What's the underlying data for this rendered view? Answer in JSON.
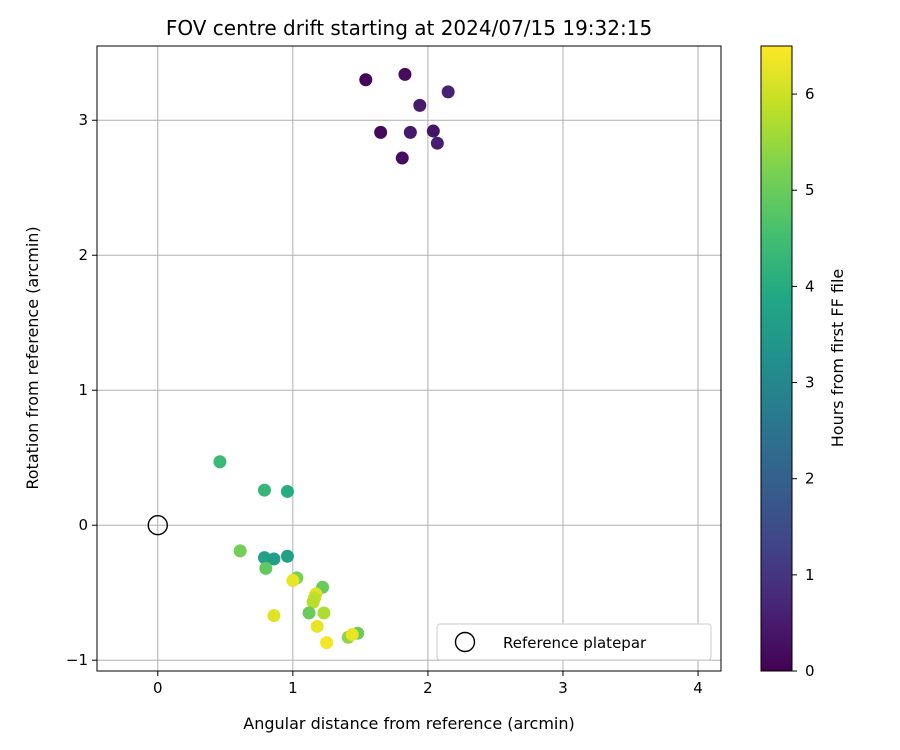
{
  "chart_data": {
    "type": "scatter",
    "title": "FOV centre drift starting at 2024/07/15 19:32:15",
    "xlabel": "Angular distance from reference (arcmin)",
    "ylabel": "Rotation from reference (arcmin)",
    "xlim": [
      -0.45,
      4.17
    ],
    "ylim": [
      -1.08,
      3.55
    ],
    "xticks": [
      0,
      1,
      2,
      3,
      4
    ],
    "yticks": [
      -1,
      0,
      1,
      2,
      3
    ],
    "grid": true,
    "legend_position": "lower-right",
    "series": [
      {
        "name": "",
        "color_by": "hours",
        "points": [
          {
            "x": 1.54,
            "y": 3.3,
            "c": 0.1
          },
          {
            "x": 1.83,
            "y": 3.34,
            "c": 0.2
          },
          {
            "x": 2.15,
            "y": 3.21,
            "c": 0.6
          },
          {
            "x": 1.94,
            "y": 3.11,
            "c": 0.5
          },
          {
            "x": 1.65,
            "y": 2.91,
            "c": 0.15
          },
          {
            "x": 1.87,
            "y": 2.91,
            "c": 0.45
          },
          {
            "x": 2.04,
            "y": 2.92,
            "c": 0.35
          },
          {
            "x": 2.07,
            "y": 2.83,
            "c": 0.55
          },
          {
            "x": 1.81,
            "y": 2.72,
            "c": 0.25
          },
          {
            "x": 0.46,
            "y": 0.47,
            "c": 4.4
          },
          {
            "x": 0.79,
            "y": 0.26,
            "c": 4.3
          },
          {
            "x": 0.96,
            "y": 0.25,
            "c": 4.0
          },
          {
            "x": 0.61,
            "y": -0.19,
            "c": 5.1
          },
          {
            "x": 0.79,
            "y": -0.24,
            "c": 3.7
          },
          {
            "x": 0.86,
            "y": -0.25,
            "c": 3.6
          },
          {
            "x": 0.96,
            "y": -0.23,
            "c": 3.7
          },
          {
            "x": 0.8,
            "y": -0.32,
            "c": 4.9
          },
          {
            "x": 1.03,
            "y": -0.39,
            "c": 5.2
          },
          {
            "x": 1.0,
            "y": -0.41,
            "c": 6.3
          },
          {
            "x": 1.22,
            "y": -0.46,
            "c": 5.0
          },
          {
            "x": 1.17,
            "y": -0.51,
            "c": 6.2
          },
          {
            "x": 1.16,
            "y": -0.54,
            "c": 5.9
          },
          {
            "x": 1.15,
            "y": -0.57,
            "c": 5.8
          },
          {
            "x": 0.86,
            "y": -0.67,
            "c": 6.2
          },
          {
            "x": 1.12,
            "y": -0.65,
            "c": 5.0
          },
          {
            "x": 1.23,
            "y": -0.65,
            "c": 5.7
          },
          {
            "x": 1.18,
            "y": -0.75,
            "c": 6.3
          },
          {
            "x": 1.41,
            "y": -0.83,
            "c": 5.4
          },
          {
            "x": 1.48,
            "y": -0.8,
            "c": 5.0
          },
          {
            "x": 1.44,
            "y": -0.81,
            "c": 6.3
          },
          {
            "x": 1.25,
            "y": -0.87,
            "c": 6.4
          }
        ]
      },
      {
        "name": "Reference platepar",
        "marker": "open-circle",
        "points": [
          {
            "x": 0,
            "y": 0
          }
        ]
      }
    ],
    "colorbar": {
      "label": "Hours from first FF file",
      "range": [
        0,
        6.5
      ],
      "ticks": [
        0,
        1,
        2,
        3,
        4,
        5,
        6
      ],
      "colormap": "viridis"
    }
  }
}
